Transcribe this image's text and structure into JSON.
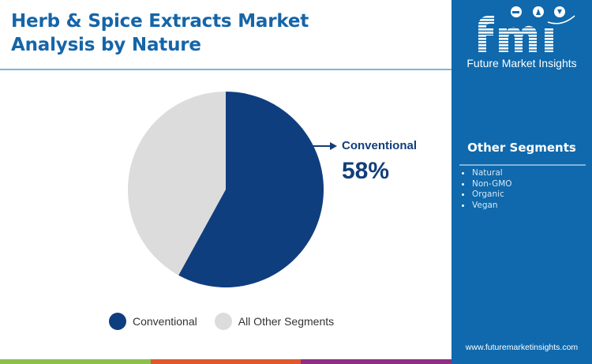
{
  "header": {
    "title_line1": "Herb & Spice Extracts Market",
    "title_line2": "Analysis by Nature"
  },
  "brand": {
    "logo_text": "fmi",
    "name": "Future Market Insights",
    "url": "www.futuremarketinsights.com"
  },
  "sidebar": {
    "title": "Other Segments",
    "items": [
      "Natural",
      "Non-GMO",
      "Organic",
      "Vegan"
    ]
  },
  "callout": {
    "label": "Conventional",
    "value": "58%"
  },
  "legend": {
    "items": [
      {
        "label": "Conventional",
        "color": "#0f3e7f"
      },
      {
        "label": "All Other Segments",
        "color": "#dcdcdc"
      }
    ]
  },
  "colors": {
    "accent": "#1565a8",
    "sidebar_bg": "#0f69ac",
    "bottom_bar": [
      "#8cc04b",
      "#e0582a",
      "#8e2f83"
    ]
  },
  "chart_data": {
    "type": "pie",
    "title": "Herb & Spice Extracts Market Analysis by Nature",
    "categories": [
      "Conventional",
      "All Other Segments"
    ],
    "values": [
      58,
      42
    ],
    "unit": "%",
    "colors": [
      "#0f3e7f",
      "#dcdcdc"
    ],
    "start_angle": "12 o'clock, clockwise",
    "annotations": [
      {
        "label": "Conventional",
        "value": "58%"
      }
    ],
    "legend_position": "bottom"
  }
}
